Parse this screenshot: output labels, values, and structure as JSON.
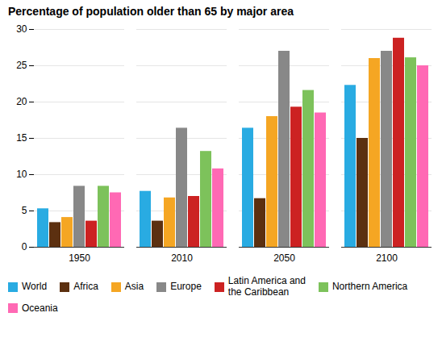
{
  "chart_data": {
    "type": "bar",
    "title": "Percentage of population older than 65 by major area",
    "categories": [
      "1950",
      "2010",
      "2050",
      "2100"
    ],
    "series": [
      {
        "name": "World",
        "color": "#29ABE2",
        "values": [
          5.3,
          7.7,
          16.4,
          22.3
        ]
      },
      {
        "name": "Africa",
        "color": "#5C3010",
        "values": [
          3.4,
          3.6,
          6.7,
          15.0
        ]
      },
      {
        "name": "Asia",
        "color": "#F5A623",
        "values": [
          4.1,
          6.8,
          18.0,
          26.0
        ]
      },
      {
        "name": "Europe",
        "color": "#888888",
        "values": [
          8.4,
          16.4,
          27.0,
          27.0
        ]
      },
      {
        "name": "Latin America and\nthe Caribbean",
        "color": "#CC2222",
        "values": [
          3.6,
          7.0,
          19.3,
          28.8
        ]
      },
      {
        "name": "Northern America",
        "color": "#7DC25B",
        "values": [
          8.4,
          13.2,
          21.6,
          26.1
        ]
      },
      {
        "name": "Oceania",
        "color": "#FF69B4",
        "values": [
          7.5,
          10.8,
          18.5,
          25.0
        ]
      }
    ],
    "ylim": [
      0,
      30
    ],
    "yticks": [
      0,
      5,
      10,
      15,
      20,
      25,
      30
    ],
    "grid": true,
    "legend": "bottom"
  }
}
